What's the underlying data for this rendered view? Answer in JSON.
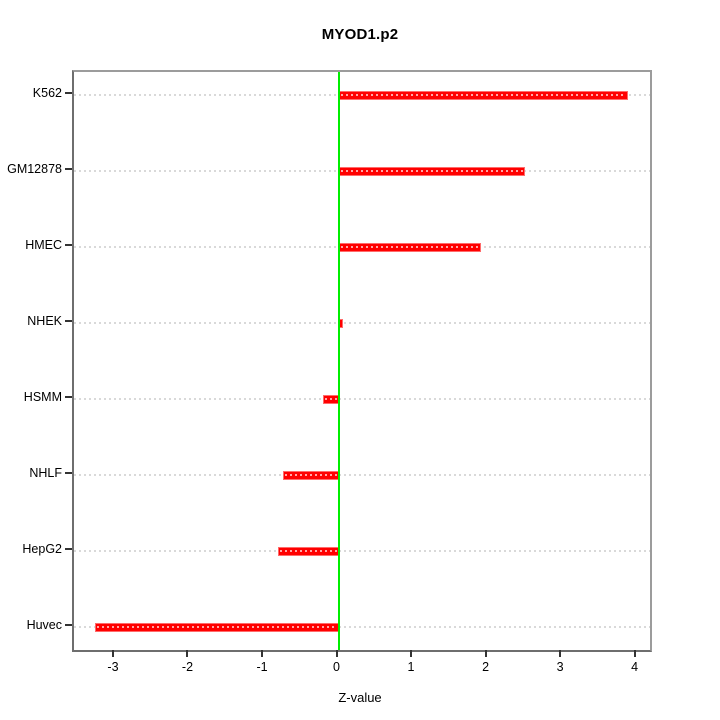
{
  "title": "MYOD1.p2",
  "xlabel": "Z-value",
  "chart_data": {
    "type": "bar",
    "orientation": "horizontal",
    "title": "MYOD1.p2",
    "xlabel": "Z-value",
    "ylabel": "",
    "categories": [
      "K562",
      "GM12878",
      "HMEC",
      "NHEK",
      "HSMM",
      "NHLF",
      "HepG2",
      "Huvec"
    ],
    "values": [
      3.88,
      2.5,
      1.91,
      0.06,
      -0.21,
      -0.75,
      -0.81,
      -3.27
    ],
    "xlim": [
      -3.55,
      4.18
    ],
    "x_ticks": [
      -3,
      -2,
      -1,
      0,
      1,
      2,
      3,
      4
    ],
    "grid": true,
    "legend": "none",
    "bar_color": "#ff0000",
    "bar_edge_color": "#ff6b6b",
    "zero_line_color": "#00ee00",
    "grid_color": "#d9d9d9",
    "box_color": "#8c8c8c",
    "tick_color": "#333333"
  }
}
